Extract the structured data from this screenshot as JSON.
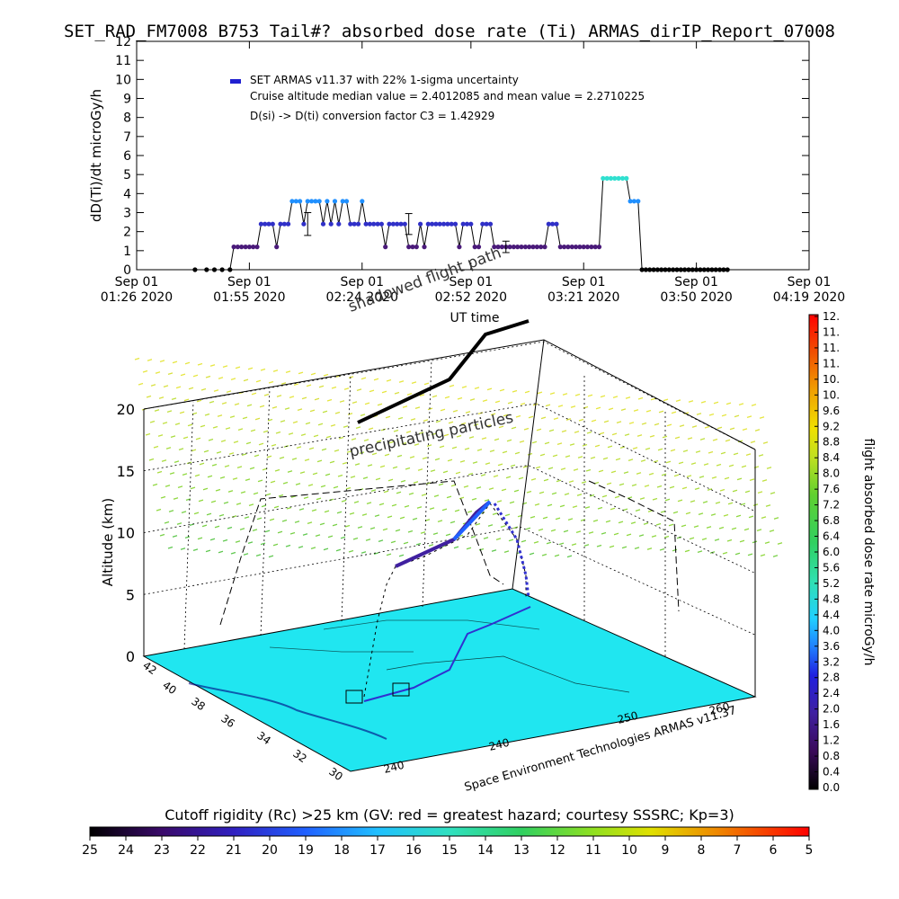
{
  "title": "SET_RAD_FM7008  B753 Tail#? absorbed dose rate (Ti) ARMAS_dirIP_Report_07008",
  "chart_data": [
    {
      "type": "line",
      "title": "",
      "ylabel": "dD(Ti)/dt microGy/h",
      "xlabel": "UT time",
      "ylim": [
        0,
        12
      ],
      "yticks": [
        "0",
        "1",
        "2",
        "3",
        "4",
        "5",
        "6",
        "7",
        "8",
        "9",
        "10",
        "11",
        "12"
      ],
      "xticks": [
        {
          "l1": "Sep 01",
          "l2": "01:26 2020"
        },
        {
          "l1": "Sep 01",
          "l2": "01:55 2020"
        },
        {
          "l1": "Sep 01",
          "l2": "02:24 2020"
        },
        {
          "l1": "Sep 01",
          "l2": "02:52 2020"
        },
        {
          "l1": "Sep 01",
          "l2": "03:21 2020"
        },
        {
          "l1": "Sep 01",
          "l2": "03:50 2020"
        },
        {
          "l1": "Sep 01",
          "l2": "04:19 2020"
        }
      ],
      "x_minutes_from_first_tick": [
        0,
        29,
        58,
        86,
        115,
        144,
        173
      ],
      "legend": [
        "SET ARMAS v11.37 with 22% 1-sigma uncertainty",
        "Cruise altitude median value = 2.4012085 and mean value = 2.2710225",
        "D(si) -> D(ti) conversion factor C3 = 1.42929"
      ],
      "series": [
        {
          "x": [
            15,
            18,
            20,
            22,
            24,
            25,
            26,
            27,
            28,
            29,
            30,
            31,
            32,
            33,
            34,
            35,
            36,
            37,
            38,
            39,
            40,
            41,
            42,
            43,
            44,
            45,
            46,
            47,
            48,
            49,
            50,
            51,
            52,
            53,
            54,
            55,
            56,
            57,
            58,
            59,
            60,
            61,
            62,
            63,
            64,
            65,
            66,
            67,
            68,
            69,
            70,
            71,
            72,
            73,
            74,
            75,
            76,
            77,
            78,
            79,
            80,
            81,
            82,
            83,
            84,
            85,
            86,
            87,
            88,
            89,
            90,
            91,
            92,
            93,
            94,
            95,
            96,
            97,
            98,
            99,
            100,
            101,
            102,
            103,
            104,
            105,
            106,
            107,
            108,
            109,
            110,
            111,
            112,
            113,
            114,
            115,
            116,
            117,
            118,
            119,
            120,
            121,
            122,
            123,
            124,
            125,
            126,
            127,
            128,
            129,
            130,
            131,
            132,
            133,
            134,
            135,
            136,
            137,
            138,
            139,
            140,
            141,
            142,
            143,
            144,
            145,
            146,
            147,
            148,
            149,
            150,
            151,
            152
          ],
          "y": [
            0,
            0,
            0,
            0,
            0,
            1.2,
            1.2,
            1.2,
            1.2,
            1.2,
            1.2,
            1.2,
            2.4,
            2.4,
            2.4,
            2.4,
            1.2,
            2.4,
            2.4,
            2.4,
            3.6,
            3.6,
            3.6,
            2.4,
            3.6,
            3.6,
            3.6,
            3.6,
            2.4,
            3.6,
            2.4,
            3.6,
            2.4,
            3.6,
            3.6,
            2.4,
            2.4,
            2.4,
            3.6,
            2.4,
            2.4,
            2.4,
            2.4,
            2.4,
            1.2,
            2.4,
            2.4,
            2.4,
            2.4,
            2.4,
            1.2,
            1.2,
            1.2,
            2.4,
            1.2,
            2.4,
            2.4,
            2.4,
            2.4,
            2.4,
            2.4,
            2.4,
            2.4,
            1.2,
            2.4,
            2.4,
            2.4,
            1.2,
            1.2,
            2.4,
            2.4,
            2.4,
            1.2,
            1.2,
            1.2,
            1.2,
            1.2,
            1.2,
            1.2,
            1.2,
            1.2,
            1.2,
            1.2,
            1.2,
            1.2,
            1.2,
            2.4,
            2.4,
            2.4,
            1.2,
            1.2,
            1.2,
            1.2,
            1.2,
            1.2,
            1.2,
            1.2,
            1.2,
            1.2,
            1.2,
            4.8,
            4.8,
            4.8,
            4.8,
            4.8,
            4.8,
            4.8,
            3.6,
            3.6,
            3.6,
            0,
            0,
            0,
            0,
            0,
            0,
            0,
            0,
            0,
            0,
            0,
            0,
            0,
            0,
            0,
            0,
            0,
            0,
            0,
            0,
            0,
            0,
            0
          ],
          "color": "#2020c0"
        }
      ],
      "error_bars": [
        {
          "x": 44,
          "y": 2.4,
          "err": 0.6
        },
        {
          "x": 70,
          "y": 2.4,
          "err": 0.55
        },
        {
          "x": 95,
          "y": 1.2,
          "err": 0.3
        }
      ]
    },
    {
      "type": "3d-trajectory",
      "zlabel": "Altitude (km)",
      "zlim": [
        0,
        20
      ],
      "zticks": [
        "0",
        "5",
        "10",
        "15",
        "20"
      ],
      "lat_ticks": [
        "42",
        "40",
        "38",
        "36",
        "34",
        "32",
        "30"
      ],
      "lon_ticks": [
        "240",
        "240",
        "250",
        "260"
      ],
      "annotations": {
        "shadow": "shadowed flight path",
        "precip": "precipitating particles",
        "credit": "Space Environment Technologies ARMAS v11.37"
      },
      "colorbar": {
        "label": "flight absorbed dose rate microGy/h",
        "ticks": [
          "0.0",
          "0.4",
          "0.8",
          "1.2",
          "1.6",
          "2.0",
          "2.4",
          "2.8",
          "3.2",
          "3.6",
          "4.0",
          "4.4",
          "4.8",
          "5.2",
          "5.6",
          "6.0",
          "6.4",
          "6.8",
          "7.2",
          "7.6",
          "8.0",
          "8.4",
          "8.8",
          "9.2",
          "9.6",
          "10.",
          "10.",
          "11.",
          "11.",
          "11.",
          "12."
        ]
      },
      "cutoff_rigidity": {
        "label": "Cutoff rigidity (Rc) >25 km (GV: red = greatest hazard; courtesy SSSRC; Kp=3)",
        "ticks": [
          "25",
          "24",
          "23",
          "22",
          "21",
          "20",
          "19",
          "18",
          "17",
          "16",
          "15",
          "14",
          "13",
          "12",
          "11",
          "10",
          "9",
          "8",
          "7",
          "6",
          "5"
        ]
      }
    }
  ]
}
